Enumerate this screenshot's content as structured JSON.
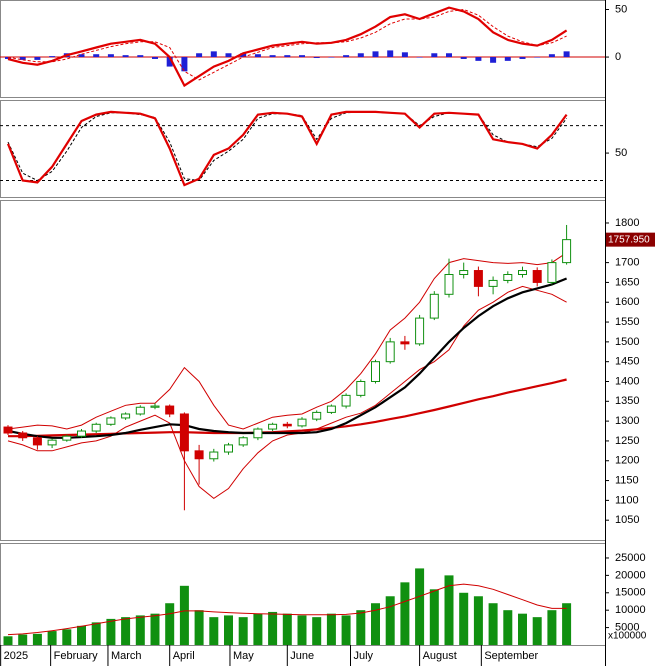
{
  "chart_data": [
    {
      "type": "macd",
      "ylim": [
        -42,
        60
      ],
      "yticks": [
        0,
        50
      ],
      "hlines": [
        0
      ],
      "series": [
        {
          "style": "bar",
          "color": "#1f1fd6",
          "values": [
            -2,
            -3,
            -3,
            1,
            4,
            3,
            3,
            3,
            2,
            2,
            -2,
            -10,
            -15,
            4,
            6,
            4,
            4,
            3,
            2,
            2,
            2,
            -1,
            0,
            2,
            4,
            6,
            7,
            5,
            0,
            4,
            4,
            -2,
            -4,
            -6,
            -4,
            -2,
            0,
            3,
            6
          ]
        },
        {
          "style": "dashed",
          "color": "#e00000",
          "values": [
            0,
            -3,
            -5,
            -5,
            -2,
            3,
            7,
            11,
            14,
            16,
            16,
            10,
            -15,
            -24,
            -16,
            -8,
            0,
            5,
            10,
            12,
            14,
            15,
            15,
            16,
            20,
            26,
            35,
            40,
            40,
            42,
            48,
            50,
            44,
            32,
            22,
            16,
            12,
            15,
            22
          ]
        },
        {
          "style": "thick",
          "color": "#e00000",
          "values": [
            -2,
            -6,
            -8,
            -4,
            2,
            6,
            10,
            14,
            16,
            18,
            14,
            0,
            -30,
            -20,
            -10,
            -4,
            4,
            8,
            12,
            14,
            16,
            14,
            15,
            18,
            24,
            32,
            42,
            45,
            40,
            46,
            52,
            48,
            40,
            26,
            18,
            14,
            12,
            18,
            28
          ]
        }
      ]
    },
    {
      "type": "stochastic",
      "ylim": [
        2,
        108
      ],
      "yticks": [
        50
      ],
      "hlines": [
        80,
        20
      ],
      "series": [
        {
          "style": "dashed",
          "color": "#000000",
          "values": [
            62,
            28,
            20,
            30,
            52,
            78,
            90,
            94,
            94,
            92,
            89,
            62,
            22,
            20,
            42,
            52,
            65,
            88,
            93,
            93,
            91,
            65,
            88,
            94,
            95,
            95,
            94,
            93,
            80,
            90,
            94,
            93,
            92,
            70,
            62,
            60,
            57,
            66,
            88
          ]
        },
        {
          "style": "thick",
          "color": "#e00000",
          "values": [
            60,
            20,
            18,
            35,
            60,
            85,
            92,
            95,
            94,
            93,
            88,
            55,
            15,
            22,
            48,
            55,
            70,
            92,
            94,
            93,
            90,
            60,
            92,
            95,
            95,
            95,
            94,
            93,
            78,
            93,
            94,
            93,
            92,
            65,
            62,
            60,
            55,
            70,
            92
          ]
        }
      ]
    },
    {
      "type": "candlestick",
      "ylim": [
        1000,
        1858
      ],
      "yticks": [
        1050,
        1100,
        1150,
        1200,
        1250,
        1300,
        1350,
        1400,
        1450,
        1500,
        1550,
        1600,
        1650,
        1700,
        1750,
        1800
      ],
      "up_color": "#109010",
      "down_color": "#d00000",
      "open": [
        1285,
        1270,
        1258,
        1240,
        1252,
        1262,
        1275,
        1292,
        1308,
        1318,
        1335,
        1338,
        1318,
        1225,
        1205,
        1222,
        1240,
        1258,
        1280,
        1292,
        1288,
        1305,
        1322,
        1338,
        1365,
        1400,
        1450,
        1500,
        1495,
        1560,
        1620,
        1670,
        1680,
        1640,
        1655,
        1670,
        1680,
        1650,
        1700
      ],
      "high": [
        1290,
        1275,
        1262,
        1256,
        1266,
        1280,
        1296,
        1312,
        1322,
        1340,
        1345,
        1342,
        1322,
        1240,
        1230,
        1245,
        1262,
        1284,
        1296,
        1298,
        1310,
        1327,
        1342,
        1370,
        1405,
        1455,
        1510,
        1515,
        1568,
        1628,
        1710,
        1700,
        1690,
        1665,
        1678,
        1690,
        1688,
        1708,
        1795
      ],
      "low": [
        1265,
        1250,
        1228,
        1232,
        1248,
        1258,
        1270,
        1288,
        1303,
        1314,
        1330,
        1310,
        1075,
        1140,
        1198,
        1215,
        1235,
        1252,
        1275,
        1282,
        1284,
        1300,
        1318,
        1332,
        1360,
        1395,
        1445,
        1480,
        1490,
        1555,
        1612,
        1660,
        1615,
        1620,
        1648,
        1662,
        1640,
        1645,
        1695
      ],
      "close": [
        1270,
        1258,
        1240,
        1252,
        1262,
        1275,
        1292,
        1308,
        1318,
        1335,
        1338,
        1318,
        1225,
        1205,
        1222,
        1240,
        1258,
        1280,
        1292,
        1288,
        1305,
        1322,
        1338,
        1365,
        1400,
        1450,
        1500,
        1495,
        1560,
        1620,
        1670,
        1680,
        1640,
        1655,
        1670,
        1680,
        1650,
        1700,
        1758
      ],
      "overlays": [
        {
          "style": "thin",
          "color": "#d00000",
          "values": [
            1280,
            1285,
            1290,
            1288,
            1280,
            1290,
            1310,
            1325,
            1340,
            1345,
            1345,
            1380,
            1435,
            1400,
            1340,
            1290,
            1280,
            1295,
            1310,
            1315,
            1318,
            1335,
            1350,
            1380,
            1420,
            1470,
            1530,
            1560,
            1600,
            1660,
            1700,
            1710,
            1705,
            1700,
            1698,
            1700,
            1695,
            1700,
            1725
          ]
        },
        {
          "style": "thin",
          "color": "#d00000",
          "values": [
            1250,
            1240,
            1225,
            1225,
            1235,
            1245,
            1250,
            1262,
            1285,
            1300,
            1315,
            1295,
            1200,
            1135,
            1105,
            1130,
            1180,
            1220,
            1250,
            1265,
            1270,
            1280,
            1295,
            1310,
            1320,
            1340,
            1370,
            1400,
            1430,
            1450,
            1480,
            1540,
            1580,
            1600,
            1625,
            1640,
            1630,
            1620,
            1600
          ]
        },
        {
          "style": "thick",
          "color": "#d00000",
          "values": [
            1262,
            1262,
            1263,
            1264,
            1265,
            1266,
            1267,
            1268,
            1269,
            1270,
            1271,
            1272,
            1272,
            1271,
            1270,
            1270,
            1270,
            1271,
            1272,
            1274,
            1276,
            1279,
            1283,
            1287,
            1292,
            1298,
            1305,
            1312,
            1320,
            1328,
            1337,
            1346,
            1355,
            1363,
            1372,
            1380,
            1388,
            1396,
            1405
          ]
        },
        {
          "style": "thick",
          "color": "#000000",
          "values": [
            1275,
            1268,
            1262,
            1258,
            1258,
            1260,
            1262,
            1265,
            1270,
            1278,
            1285,
            1292,
            1290,
            1280,
            1275,
            1272,
            1270,
            1270,
            1270,
            1270,
            1270,
            1272,
            1280,
            1295,
            1315,
            1335,
            1360,
            1385,
            1420,
            1460,
            1500,
            1535,
            1565,
            1590,
            1610,
            1625,
            1635,
            1645,
            1660
          ]
        }
      ],
      "last_value": 1757.95,
      "last_value_label": "1757.950",
      "last_value_color": "#8b0000"
    },
    {
      "type": "volume",
      "ylim": [
        0,
        29300
      ],
      "yticks": [
        5000,
        10000,
        15000,
        20000,
        25000
      ],
      "color": "#109010",
      "values": [
        2500,
        3000,
        3200,
        4000,
        4500,
        5500,
        6500,
        7500,
        8000,
        8500,
        9000,
        12000,
        17000,
        10000,
        8000,
        8500,
        8000,
        9000,
        9500,
        9000,
        8500,
        8000,
        9000,
        8500,
        10000,
        12000,
        14000,
        18000,
        22000,
        16000,
        20000,
        15000,
        14000,
        12000,
        10000,
        9000,
        8000,
        10000,
        12000
      ],
      "ma": {
        "color": "#d00000",
        "values": [
          3000,
          3200,
          3600,
          4100,
          4700,
          5400,
          6100,
          6800,
          7500,
          8000,
          8400,
          9000,
          9800,
          9800,
          9500,
          9300,
          9100,
          9000,
          8900,
          8800,
          8700,
          8700,
          8700,
          8800,
          9200,
          10000,
          11000,
          12500,
          14000,
          15500,
          17000,
          17500,
          17000,
          16000,
          14500,
          13000,
          11500,
          10500,
          10500
        ]
      },
      "multiplier_label": "x100000",
      "xticks": [
        {
          "value": -0.5,
          "label": "2025"
        },
        {
          "value": 2.9,
          "label": "February"
        },
        {
          "value": 6.8,
          "label": "March"
        },
        {
          "value": 11.0,
          "label": "April"
        },
        {
          "value": 15.1,
          "label": "May"
        },
        {
          "value": 19.0,
          "label": "June"
        },
        {
          "value": 23.3,
          "label": "July"
        },
        {
          "value": 28.0,
          "label": "August"
        },
        {
          "value": 32.2,
          "label": "September"
        }
      ]
    }
  ]
}
